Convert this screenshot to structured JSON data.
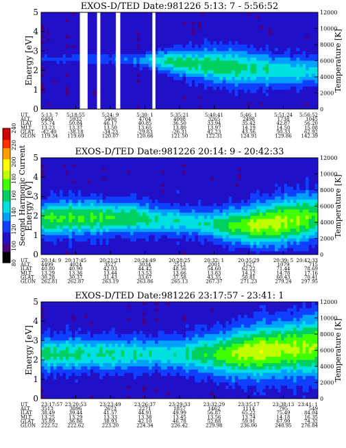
{
  "colorbar": {
    "title": "Second Harmonic Current",
    "ticks": [
      "80",
      "100",
      "120",
      "140",
      "160",
      "180",
      "200",
      "220",
      "240"
    ],
    "vmin": 80,
    "vmax": 240,
    "colors": [
      "#000000",
      "#4b0082",
      "#2010c8",
      "#1040ff",
      "#00a0ff",
      "#00e0e0",
      "#00d060",
      "#40ff00",
      "#c0ff00",
      "#ffff00",
      "#ffa000",
      "#ff3000",
      "#d00000"
    ]
  },
  "row_labels": [
    "UT",
    "ALT",
    "ILAT",
    "MLT",
    "GLAT",
    "GLON"
  ],
  "chart_data": [
    {
      "type": "heatmap",
      "title": "EXOS-D/TED   Date:981226  5:13: 7 - 5:56:52",
      "ylabel": "Energy [eV]",
      "y2label": "Temperature [K]",
      "ylim": [
        0,
        5
      ],
      "y2lim": [
        0,
        12000
      ],
      "yticks": [
        "0",
        "1",
        "2",
        "3",
        "4",
        "5"
      ],
      "y2ticks": [
        "0",
        "2000",
        "4000",
        "6000",
        "8000",
        "10000",
        "12000"
      ],
      "band": {
        "center": [
          2.6,
          2.6,
          2.6,
          2.6,
          2.55,
          2.5,
          2.4,
          2.3,
          2.2,
          2.1,
          2.0,
          1.95,
          1.95
        ],
        "width": [
          0.25,
          0.3,
          0.35,
          0.35,
          0.4,
          0.6,
          0.9,
          1.1,
          1.2,
          1.2,
          1.1,
          1.0,
          0.9
        ],
        "peak": [
          120,
          122,
          125,
          125,
          130,
          148,
          160,
          160,
          160,
          158,
          152,
          148,
          145
        ]
      },
      "gaps": [
        [
          0.14,
          0.168
        ],
        [
          0.202,
          0.214
        ],
        [
          0.27,
          0.286
        ],
        [
          0.402,
          0.413
        ]
      ],
      "columns": [
        {
          "UT": "5:13: 7",
          "ALT": "6484",
          "ILAT": "55.74",
          "MLT": "13.23",
          "GLAT": "-42.40",
          "GLON": "119.34"
        },
        {
          "UT": "5:18:55",
          "ALT": "5932",
          "ILAT": "50.84",
          "MLT": "13.37",
          "GLAT": "-38.18",
          "GLON": "119.69"
        },
        {
          "UT": "5:24: 9",
          "ALT": "5400",
          "ILAT": "46.17",
          "MLT": "13.50",
          "GLAT": "-34.23",
          "GLON": "120.07"
        },
        {
          "UT": "5:30: 1",
          "ALT": "4704",
          "ILAT": "40.85",
          "MLT": "13.65",
          "GLAT": "-29.83",
          "GLON": "120.66"
        },
        {
          "UT": "5:35:21",
          "ALT": "4008",
          "ILAT": "36.50",
          "MLT": "13.80",
          "GLAT": "-26.31",
          "GLON": "121.50"
        },
        {
          "UT": "5:40:41",
          "ALT": "3265",
          "ILAT": "33.94",
          "MLT": "13.97",
          "GLAT": "42.23",
          "GLON": "122.31"
        },
        {
          "UT": "5:46: 1",
          "ALT": "2498",
          "ILAT": "35.42",
          "MLT": "14.19",
          "GLAT": "43.56",
          "GLON": "124.91"
        },
        {
          "UT": "5:51:24",
          "ALT": "1738",
          "ILAT": "42.87",
          "MLT": "14.50",
          "GLAT": "50.33",
          "GLON": "129.86"
        },
        {
          "UT": "5:56:52",
          "ALT": "1045",
          "ILAT": "56.20",
          "MLT": "15.08",
          "GLAT": "62.92",
          "GLON": "142.39"
        }
      ]
    },
    {
      "type": "heatmap",
      "title": "EXOS-D/TED   Date:981226  20:14: 9 - 20:42:33",
      "ylabel": "Energy [eV]",
      "y2label": "Temperature [K]",
      "ylim": [
        0,
        5
      ],
      "y2lim": [
        0,
        12000
      ],
      "yticks": [
        "0",
        "1",
        "2",
        "3",
        "4",
        "5"
      ],
      "y2ticks": [
        "0",
        "2000",
        "4000",
        "6000",
        "8000",
        "10000",
        "12000"
      ],
      "band": {
        "center": [
          1.8,
          1.9,
          1.9,
          1.9,
          1.9,
          1.8,
          1.7,
          1.6,
          1.5,
          1.5,
          1.6,
          1.8,
          2.0
        ],
        "width": [
          1.1,
          1.2,
          1.2,
          1.1,
          1.1,
          1.0,
          0.9,
          0.9,
          1.1,
          1.3,
          1.5,
          1.6,
          1.6
        ],
        "peak": [
          168,
          170,
          168,
          165,
          162,
          155,
          150,
          150,
          165,
          180,
          185,
          180,
          170
        ]
      },
      "gaps": [],
      "columns": [
        {
          "UT": "20:14: 9",
          "ALT": "4499",
          "ILAT": "40.80",
          "MLT": "13.29",
          "GLAT": "30.28",
          "GLON": "262.81"
        },
        {
          "UT": "20:17:45",
          "ALT": "4024",
          "ILAT": "40.90",
          "MLT": "13.36",
          "GLAT": "30.37",
          "GLON": "262.87"
        },
        {
          "UT": "20:21:21",
          "ALT": "3527",
          "ILAT": "42.03",
          "MLT": "13.44",
          "GLAT": "31.43",
          "GLON": "263.19"
        },
        {
          "UT": "20:24:49",
          "ALT": "3034",
          "ILAT": "44.42",
          "MLT": "13.53",
          "GLAT": "33.67",
          "GLON": "263.86"
        },
        {
          "UT": "20:28:25",
          "ALT": "2513",
          "ILAT": "48.56",
          "MLT": "13.66",
          "GLAT": "37.58",
          "GLON": "265.13"
        },
        {
          "UT": "20:32: 1",
          "ALT": "2001",
          "ILAT": "54.60",
          "MLT": "13.83",
          "GLAT": "43.35",
          "GLON": "267.37"
        },
        {
          "UT": "20:35:29",
          "ALT": "1527",
          "ILAT": "62.22",
          "MLT": "14.12",
          "GLAT": "50.81",
          "GLON": "271.23"
        },
        {
          "UT": "20:39: 5",
          "ALT": "1079",
          "ILAT": "71.44",
          "MLT": "14.78",
          "GLAT": "60.43",
          "GLON": "279.24"
        },
        {
          "UT": "20:42:33",
          "ALT": "715",
          "ILAT": "78.69",
          "MLT": "17.16",
          "GLAT": "70.41",
          "GLON": "297.95"
        }
      ]
    },
    {
      "type": "heatmap",
      "title": "EXOS-D/TED   Date:981226  23:17:57 - 23:41: 1",
      "ylabel": "Energy [eV]",
      "y2label": "Temperature [K]",
      "ylim": [
        0,
        5
      ],
      "y2lim": [
        0,
        12000
      ],
      "yticks": [
        "0",
        "1",
        "2",
        "3",
        "4",
        "5"
      ],
      "y2ticks": [
        "0",
        "2000",
        "4000",
        "6000",
        "8000",
        "10000",
        "12000"
      ],
      "band": {
        "center": [
          2.3,
          2.3,
          2.3,
          2.3,
          2.3,
          2.3,
          2.3,
          2.3,
          2.3,
          2.4,
          2.5,
          2.6,
          2.7
        ],
        "width": [
          1.1,
          1.1,
          1.1,
          1.1,
          1.1,
          1.1,
          1.2,
          1.3,
          1.5,
          1.7,
          1.8,
          1.9,
          2.0
        ],
        "peak": [
          158,
          158,
          155,
          155,
          152,
          150,
          152,
          160,
          175,
          185,
          185,
          182,
          178
        ]
      },
      "gaps": [],
      "columns": [
        {
          "UT": "23:17:57",
          "ALT": "3513",
          "ILAT": "38.49",
          "MLT": "13.25",
          "GLAT": "35.89",
          "GLON": "222.52"
        },
        {
          "UT": "23:20:53",
          "ALT": "3096",
          "ILAT": "39.44",
          "MLT": "13.29",
          "GLAT": "36.86",
          "GLON": "222.62"
        },
        {
          "UT": "23:23:49",
          "ALT": "2673",
          "ILAT": "41.57",
          "MLT": "13.33",
          "GLAT": "38.93",
          "GLON": "223.20"
        },
        {
          "UT": "23:26:37",
          "ALT": "2271",
          "ILAT": "44.91",
          "MLT": "13.38",
          "GLAT": "42.10",
          "GLON": "224.34"
        },
        {
          "UT": "23:29:33",
          "ALT": "1857",
          "ILAT": "49.99",
          "MLT": "13.45",
          "GLAT": "46.78",
          "GLON": "226.42"
        },
        {
          "UT": "23:32:29",
          "ALT": "1462",
          "ILAT": "56.87",
          "MLT": "13.56",
          "GLAT": "52.88",
          "GLON": "229.98"
        },
        {
          "UT": "23:35:17",
          "ALT": "1114",
          "ILAT": "65.22",
          "MLT": "13.74",
          "GLAT": "59.91",
          "GLON": "236.06"
        },
        {
          "UT": "23:38:13",
          "ALT": "795",
          "ILAT": "75.49",
          "MLT": "14.18",
          "GLAT": "67.99",
          "GLON": "248.95"
        },
        {
          "UT": "23:41: 1",
          "ALT": "549",
          "ILAT": "84.04",
          "MLT": "16.35",
          "GLAT": "74.32",
          "GLON": "276.84"
        }
      ]
    }
  ]
}
